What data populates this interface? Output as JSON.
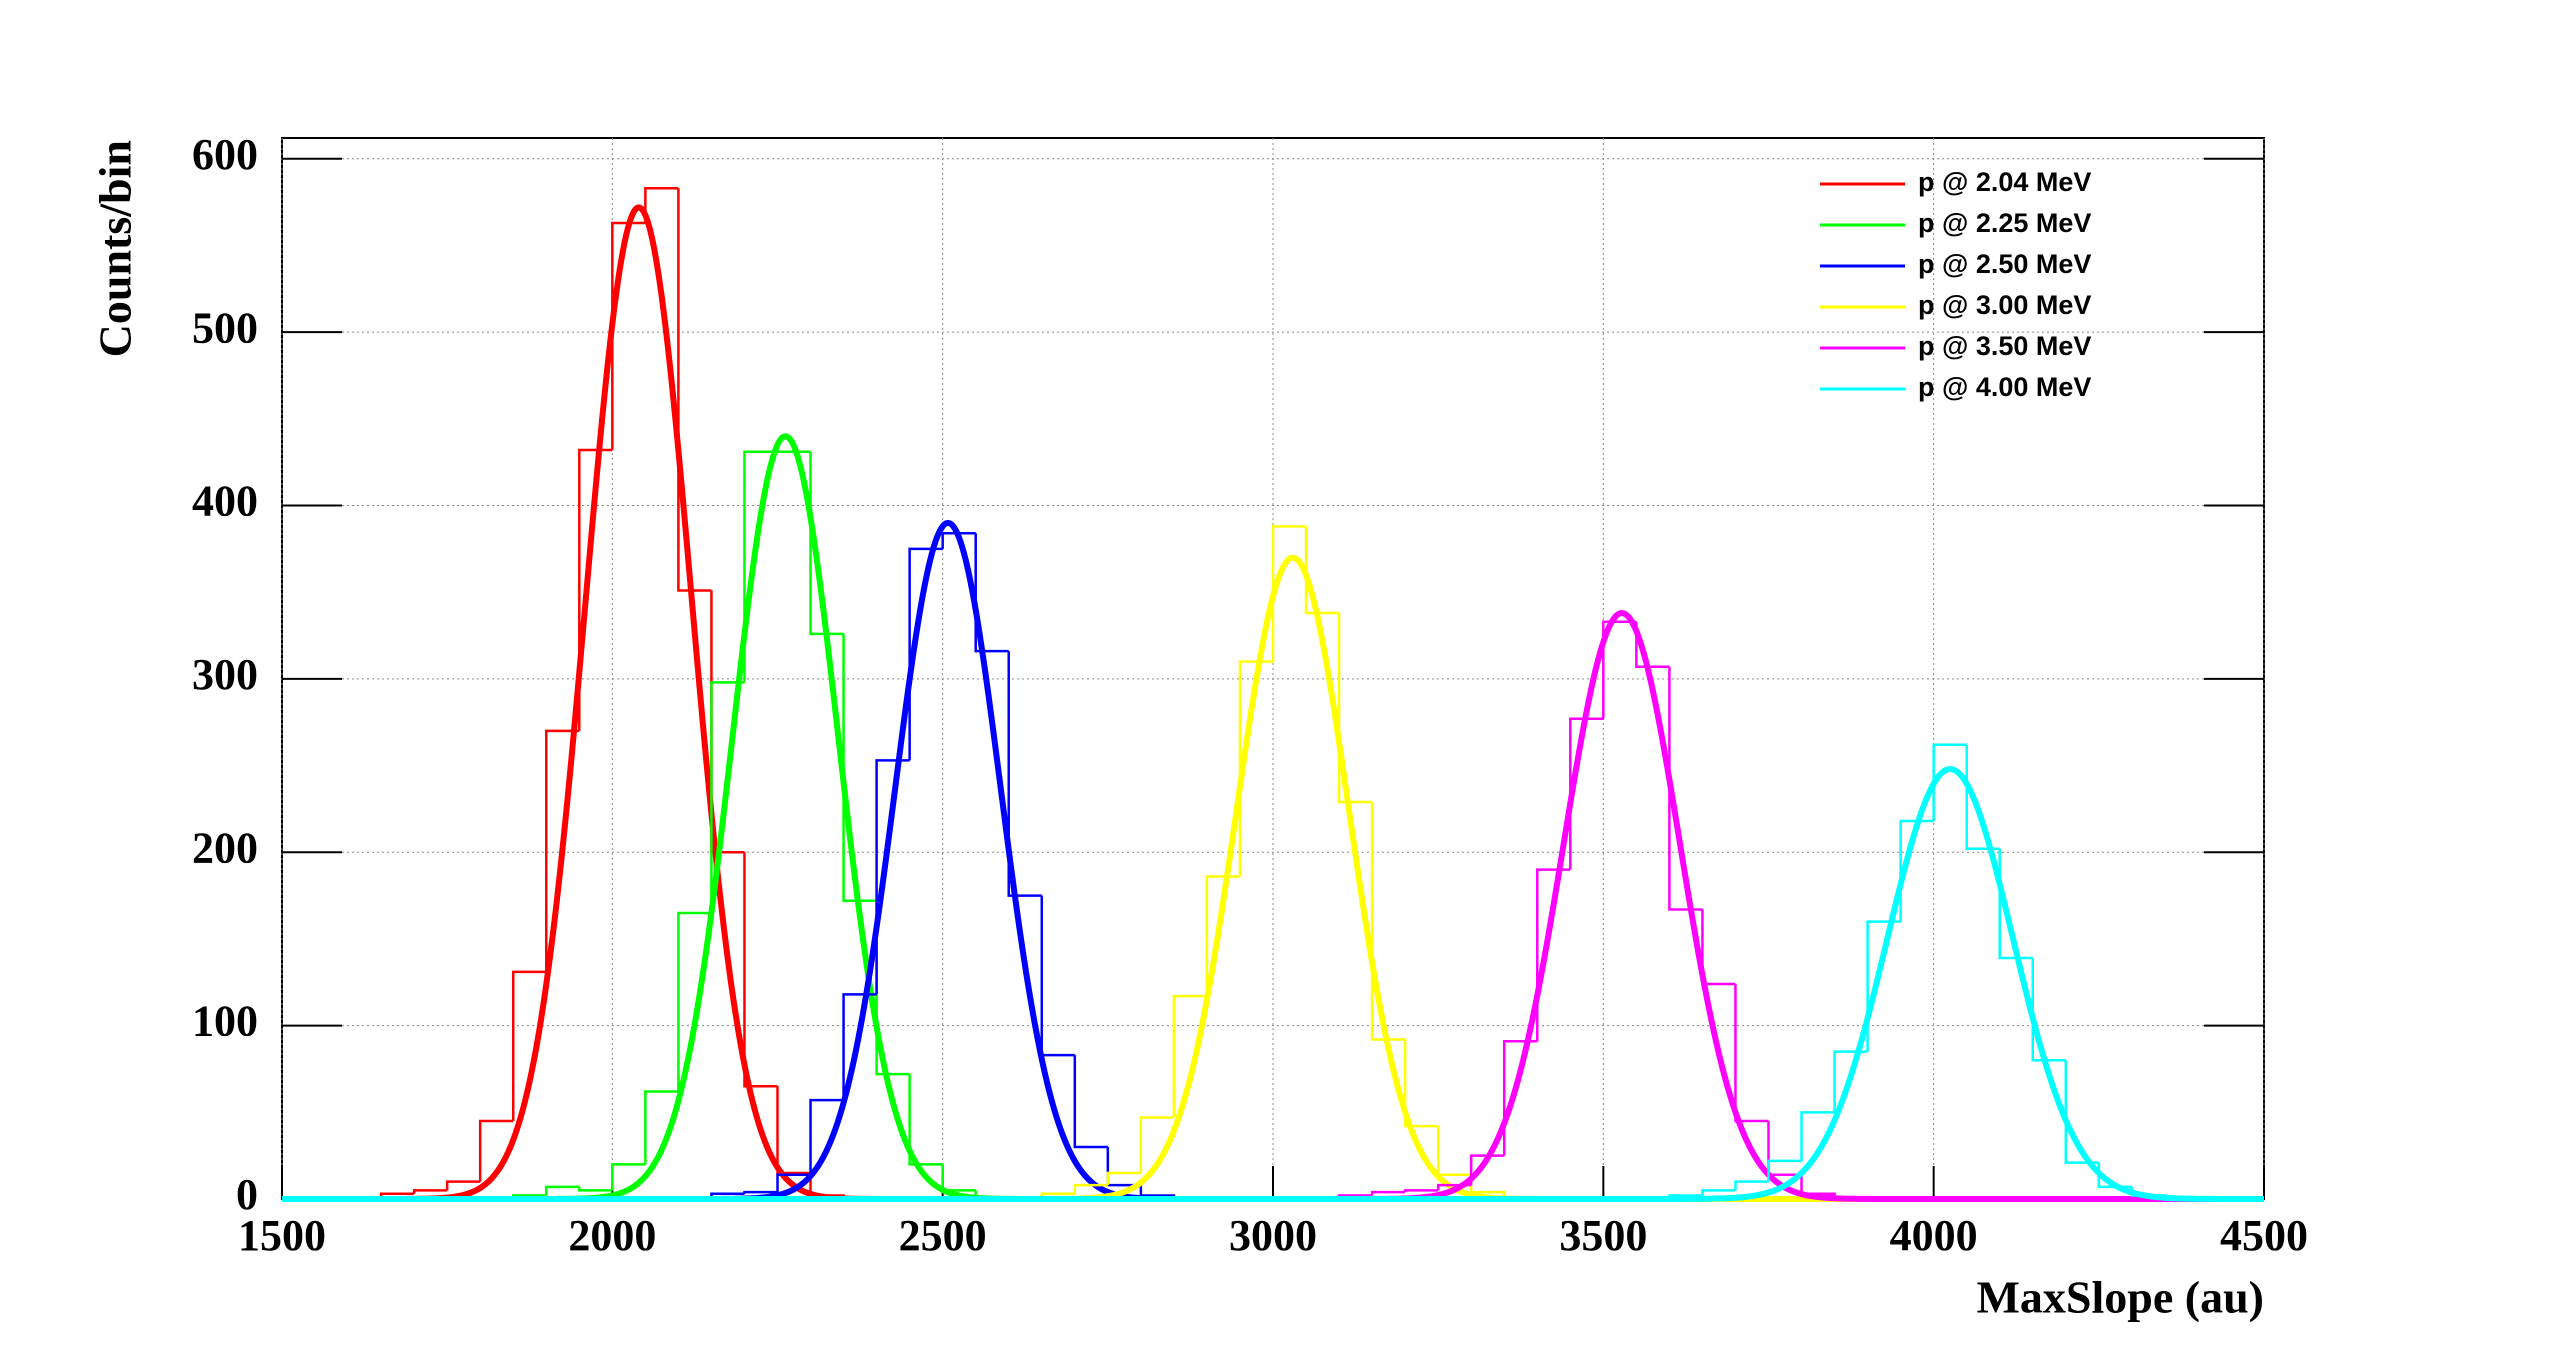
{
  "chart_data": {
    "type": "histogram",
    "x_label": "MaxSlope (au)",
    "y_label": "Counts/bin",
    "xlim": [
      1500,
      4500
    ],
    "ylim": [
      0,
      612
    ],
    "xticks": [
      1500,
      2000,
      2500,
      3000,
      3500,
      4000,
      4500
    ],
    "yticks": [
      0,
      100,
      200,
      300,
      400,
      500,
      600
    ],
    "grid": true,
    "legend": "upper right",
    "series": [
      {
        "name": "p @ 2.04 MeV",
        "color": "#ff0000",
        "bins": [
          1650,
          1700,
          1750,
          1800,
          1850,
          1900,
          1950,
          2000,
          2050,
          2100,
          2150,
          2200,
          2250,
          2300,
          2350
        ],
        "values": [
          3,
          5,
          10,
          45,
          131,
          270,
          432,
          563,
          583,
          351,
          200,
          65,
          15,
          2
        ],
        "fit": {
          "amplitude": 572,
          "mean": 2040,
          "sigma": 80
        }
      },
      {
        "name": "p @ 2.25 MeV",
        "color": "#00ff00",
        "bins": [
          1850,
          1900,
          1950,
          2000,
          2050,
          2100,
          2150,
          2200,
          2250,
          2300,
          2350,
          2400,
          2450,
          2500,
          2550,
          2600
        ],
        "values": [
          2,
          7,
          5,
          20,
          62,
          165,
          298,
          431,
          431,
          326,
          172,
          72,
          20,
          5,
          1
        ],
        "fit": {
          "amplitude": 440,
          "mean": 2262,
          "sigma": 80
        }
      },
      {
        "name": "p @ 2.50 MeV",
        "color": "#0000ff",
        "bins": [
          2150,
          2200,
          2250,
          2300,
          2350,
          2400,
          2450,
          2500,
          2550,
          2600,
          2650,
          2700,
          2750,
          2800,
          2850
        ],
        "values": [
          3,
          4,
          14,
          57,
          118,
          253,
          375,
          384,
          316,
          175,
          83,
          30,
          8,
          2
        ],
        "fit": {
          "amplitude": 390,
          "mean": 2508,
          "sigma": 80
        }
      },
      {
        "name": "p @ 3.00 MeV",
        "color": "#ffff00",
        "bins": [
          2650,
          2700,
          2750,
          2800,
          2850,
          2900,
          2950,
          3000,
          3050,
          3100,
          3150,
          3200,
          3250,
          3300,
          3350
        ],
        "values": [
          3,
          8,
          15,
          47,
          117,
          186,
          310,
          388,
          338,
          229,
          92,
          42,
          14,
          4
        ],
        "fit": {
          "amplitude": 370,
          "mean": 3030,
          "sigma": 85
        }
      },
      {
        "name": "p @ 3.50 MeV",
        "color": "#ff00ff",
        "bins": [
          3100,
          3150,
          3200,
          3250,
          3300,
          3350,
          3400,
          3450,
          3500,
          3550,
          3600,
          3650,
          3700,
          3750,
          3800,
          3850
        ],
        "values": [
          2,
          4,
          5,
          8,
          25,
          91,
          190,
          277,
          333,
          307,
          167,
          124,
          45,
          14,
          3
        ],
        "fit": {
          "amplitude": 338,
          "mean": 3528,
          "sigma": 88
        }
      },
      {
        "name": "p @ 4.00 MeV",
        "color": "#00ffff",
        "bins": [
          3600,
          3650,
          3700,
          3750,
          3800,
          3850,
          3900,
          3950,
          4000,
          4050,
          4100,
          4150,
          4200,
          4250,
          4300,
          4350
        ],
        "values": [
          2,
          5,
          10,
          22,
          50,
          85,
          160,
          218,
          262,
          202,
          139,
          80,
          21,
          7,
          2
        ],
        "fit": {
          "amplitude": 248,
          "mean": 4025,
          "sigma": 95
        }
      }
    ]
  }
}
